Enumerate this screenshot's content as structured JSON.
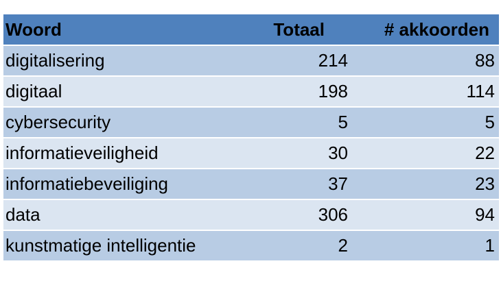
{
  "table": {
    "columns": [
      "Woord",
      "Totaal",
      "# akkoorden"
    ],
    "rows": [
      {
        "woord": "digitalisering",
        "totaal": "214",
        "akkoorden": "88"
      },
      {
        "woord": "digitaal",
        "totaal": "198",
        "akkoorden": "114"
      },
      {
        "woord": "cybersecurity",
        "totaal": "5",
        "akkoorden": "5"
      },
      {
        "woord": "informatieveiligheid",
        "totaal": "30",
        "akkoorden": "22"
      },
      {
        "woord": "informatiebeveiliging",
        "totaal": "37",
        "akkoorden": "23"
      },
      {
        "woord": "data",
        "totaal": "306",
        "akkoorden": "94"
      },
      {
        "woord": "kunstmatige intelligentie",
        "totaal": "2",
        "akkoorden": "1"
      }
    ]
  },
  "colors": {
    "header": "#4f81bd",
    "row_dark": "#b8cce4",
    "row_light": "#dbe5f1"
  }
}
